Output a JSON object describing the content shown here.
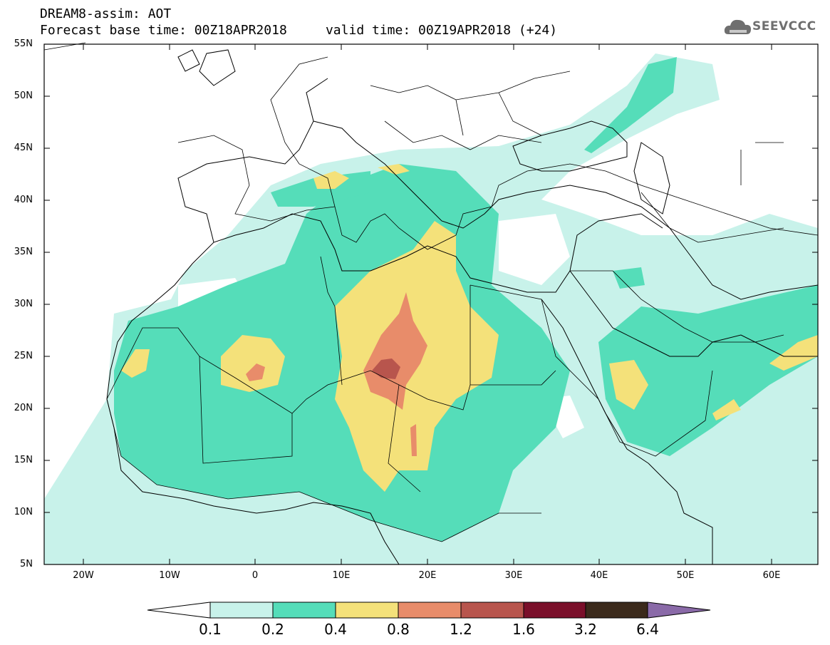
{
  "header": {
    "title_line1": "DREAM8-assim: AOT",
    "title_line2": "Forecast base time: 00Z18APR2018",
    "valid_time": "valid time: 00Z19APR2018 (+24)"
  },
  "logo": {
    "text": "SEEVCCC",
    "icon": "cloud-icon"
  },
  "map": {
    "lat_labels": [
      "55N",
      "50N",
      "45N",
      "40N",
      "35N",
      "30N",
      "25N",
      "20N",
      "15N",
      "10N",
      "5N"
    ],
    "lon_labels": [
      "20W",
      "10W",
      "0",
      "10E",
      "20E",
      "30E",
      "40E",
      "50E",
      "60E"
    ],
    "lon_range": [
      -25,
      65
    ],
    "lat_range": [
      5,
      55
    ]
  },
  "colorbar": {
    "labels": [
      "0.1",
      "0.2",
      "0.4",
      "0.8",
      "1.2",
      "1.6",
      "3.2",
      "6.4"
    ],
    "colors": [
      "#c8f2ea",
      "#55ddb9",
      "#f4e17a",
      "#e88c6a",
      "#b8554d",
      "#7a0f2a",
      "#3b2a1b",
      "#8a6aa8"
    ]
  }
}
